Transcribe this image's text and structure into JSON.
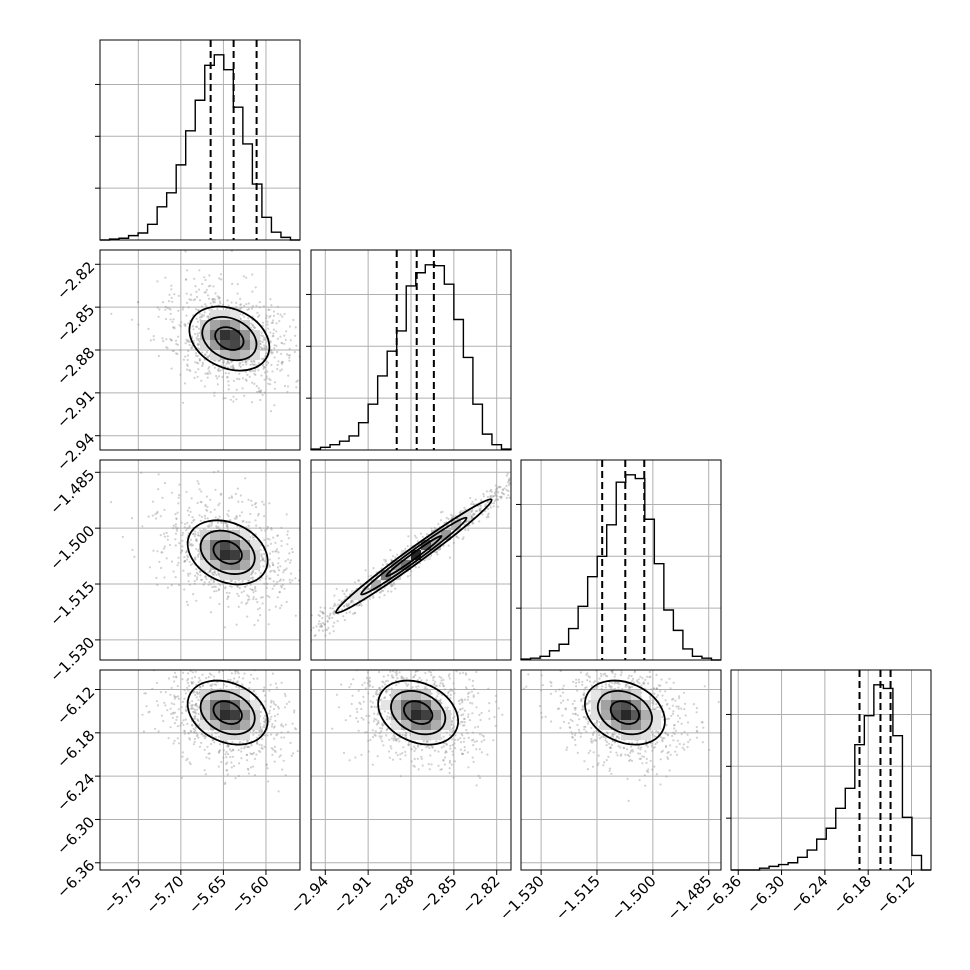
{
  "chart_data": {
    "type": "corner",
    "parameters": [
      {
        "index": 0,
        "range": [
          -5.795,
          -5.56
        ],
        "ticks": [
          -5.75,
          -5.7,
          -5.65,
          -5.6
        ],
        "tick_labels": [
          "−5.75",
          "−5.70",
          "−5.65",
          "−5.60"
        ],
        "quantiles": [
          -5.665,
          -5.638,
          -5.611
        ],
        "marginal_hist": [
          0,
          1,
          2,
          5,
          8,
          18,
          38,
          54,
          86,
          125,
          160,
          200,
          212,
          195,
          152,
          110,
          64,
          26,
          9,
          3,
          0
        ]
      },
      {
        "index": 1,
        "range": [
          -2.95,
          -2.81
        ],
        "ticks": [
          -2.94,
          -2.91,
          -2.88,
          -2.85,
          -2.82
        ],
        "tick_labels": [
          "−2.94",
          "−2.91",
          "−2.88",
          "−2.85",
          "−2.82"
        ],
        "quantiles": [
          -2.89,
          -2.876,
          -2.864
        ],
        "marginal_hist": [
          1,
          3,
          6,
          10,
          16,
          31,
          52,
          84,
          112,
          135,
          186,
          201,
          210,
          209,
          188,
          148,
          105,
          52,
          18,
          6,
          1
        ]
      },
      {
        "index": 2,
        "range": [
          -1.5354,
          -1.4817
        ],
        "ticks": [
          -1.53,
          -1.515,
          -1.5,
          -1.485
        ],
        "tick_labels": [
          "−1.530",
          "−1.515",
          "−1.500",
          "−1.485"
        ],
        "quantiles": [
          -1.5136,
          -1.5074,
          -1.5023
        ],
        "marginal_hist": [
          1,
          2,
          4,
          10,
          17,
          34,
          58,
          90,
          112,
          146,
          192,
          200,
          196,
          152,
          104,
          54,
          32,
          12,
          4,
          2,
          0
        ]
      },
      {
        "index": 3,
        "range": [
          -6.37,
          -6.093
        ],
        "ticks": [
          -6.36,
          -6.3,
          -6.24,
          -6.18,
          -6.12
        ],
        "tick_labels": [
          "−6.36",
          "−6.30",
          "−6.24",
          "−6.18",
          "−6.12"
        ],
        "quantiles": [
          -6.192,
          -6.163,
          -6.149
        ],
        "marginal_hist": [
          0,
          0,
          0,
          1,
          2,
          3,
          4,
          7,
          11,
          17,
          23,
          34,
          45,
          69,
          85,
          102,
          100,
          74,
          29,
          8,
          0
        ]
      }
    ],
    "joint_centers": {
      "1_0": [
        -5.643,
        -2.872
      ],
      "2_0": [
        -5.645,
        -1.5065
      ],
      "2_1": [
        -2.878,
        -1.5075
      ],
      "3_0": [
        -5.645,
        -6.152
      ],
      "3_1": [
        -2.875,
        -6.152
      ],
      "3_2": [
        -1.5075,
        -6.152
      ]
    },
    "grid": true,
    "contour_levels": 3,
    "colors": {
      "ink": "#000000",
      "grid": "#b0b0b0",
      "scatter": "#9a9a9a"
    }
  }
}
